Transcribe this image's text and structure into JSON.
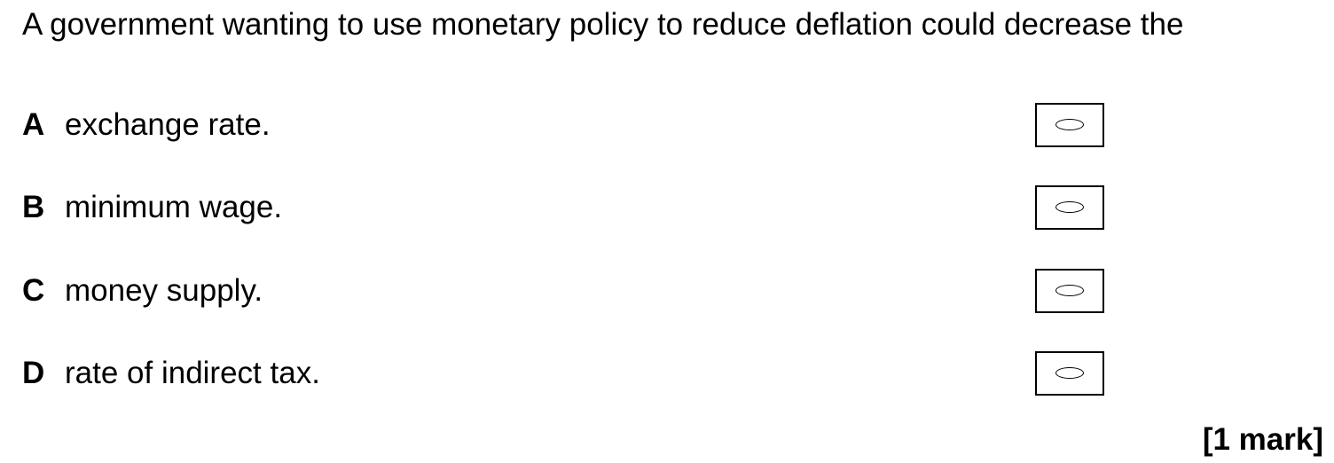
{
  "question": {
    "text": "A government wanting to use monetary policy to reduce deflation could decrease the"
  },
  "options": [
    {
      "letter": "A",
      "text": "exchange rate."
    },
    {
      "letter": "B",
      "text": "minimum wage."
    },
    {
      "letter": "C",
      "text": "money supply."
    },
    {
      "letter": "D",
      "text": "rate of indirect tax."
    }
  ],
  "marks": "[1 mark]"
}
